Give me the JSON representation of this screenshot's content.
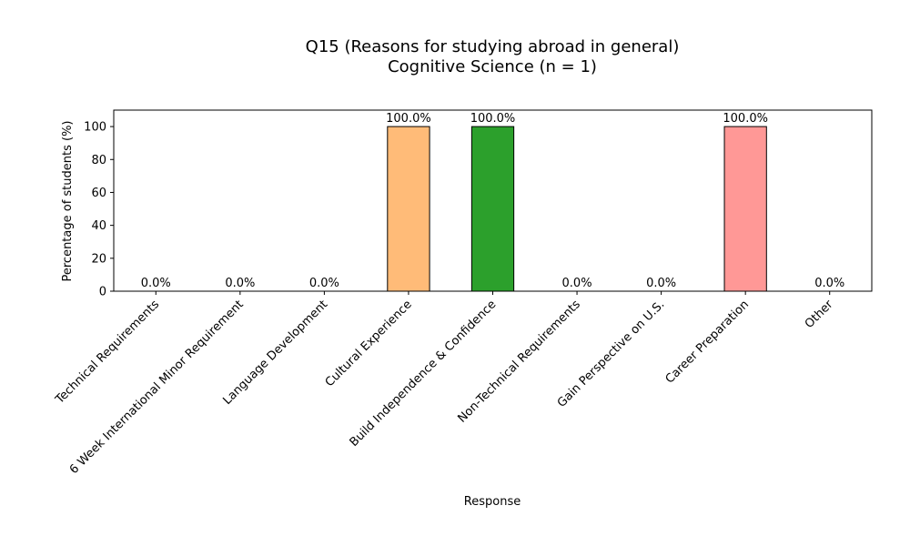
{
  "chart_data": {
    "type": "bar",
    "title": "Q15 (Reasons for studying abroad in general)",
    "subtitle": "Cognitive Science (n = 1)",
    "xlabel": "Response",
    "ylabel": "Percentage of students (%)",
    "categories": [
      "Technical Requirements",
      "6 Week International Minor Requirement",
      "Language Development",
      "Cultural Experience",
      "Build Independence & Confidence",
      "Non-Technical Requirements",
      "Gain Perspective on U.S.",
      "Career Preparation",
      "Other"
    ],
    "values": [
      0,
      0,
      0,
      100,
      100,
      0,
      0,
      100,
      0
    ],
    "data_labels": [
      "0.0%",
      "0.0%",
      "0.0%",
      "100.0%",
      "100.0%",
      "0.0%",
      "0.0%",
      "100.0%",
      "0.0%"
    ],
    "colors": [
      "#1f77b4",
      "#aec7e8",
      "#ff7f0e",
      "#ffbb78",
      "#2ca02c",
      "#98df8a",
      "#d62728",
      "#ff9896",
      "#9467bd"
    ],
    "ylim": [
      0,
      110
    ],
    "yticks": [
      0,
      20,
      40,
      60,
      80,
      100
    ],
    "grid": false,
    "legend": "none"
  }
}
